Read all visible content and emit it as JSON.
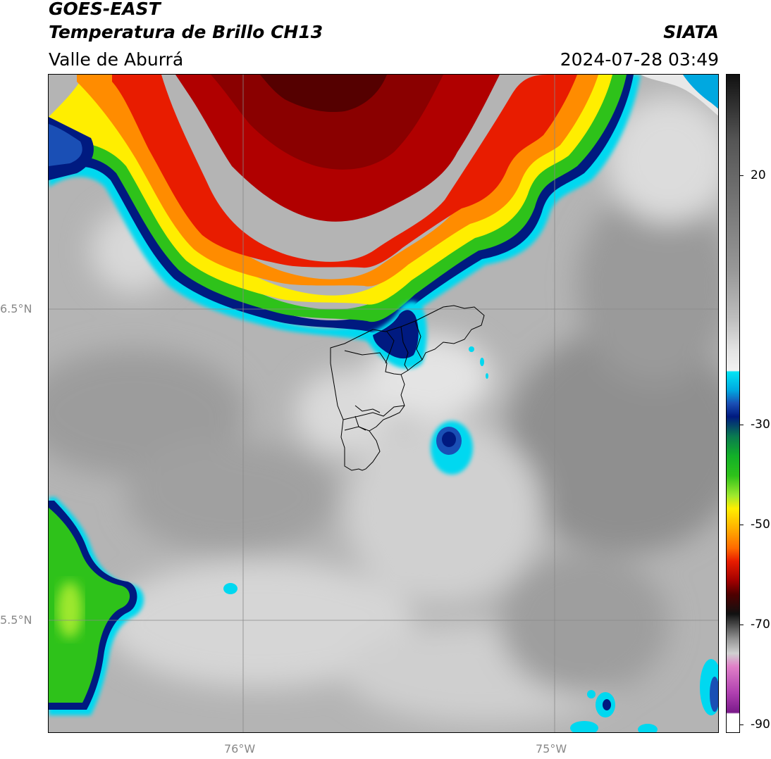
{
  "header": {
    "satellite": "GOES-EAST",
    "product": "Temperatura de Brillo CH13",
    "region": "Valle de Aburrá",
    "source": "SIATA",
    "timestamp": "2024-07-28 03:49"
  },
  "axes": {
    "lon_ticks": [
      "76°W",
      "75°W"
    ],
    "lat_ticks": [
      "6.5°N",
      "5.5°N"
    ]
  },
  "colorbar": {
    "ticks": [
      "20",
      "-30",
      "-50",
      "-70",
      "-90"
    ],
    "range": [
      -92,
      28
    ]
  },
  "colors": {
    "cold_core": "#6b0000",
    "red": "#e81c00",
    "orange": "#ff8c00",
    "yellow": "#ffee00",
    "green": "#2ec21a",
    "navy": "#001a80",
    "cyan": "#00d8f0",
    "background_gray": "#a8a8a8"
  }
}
